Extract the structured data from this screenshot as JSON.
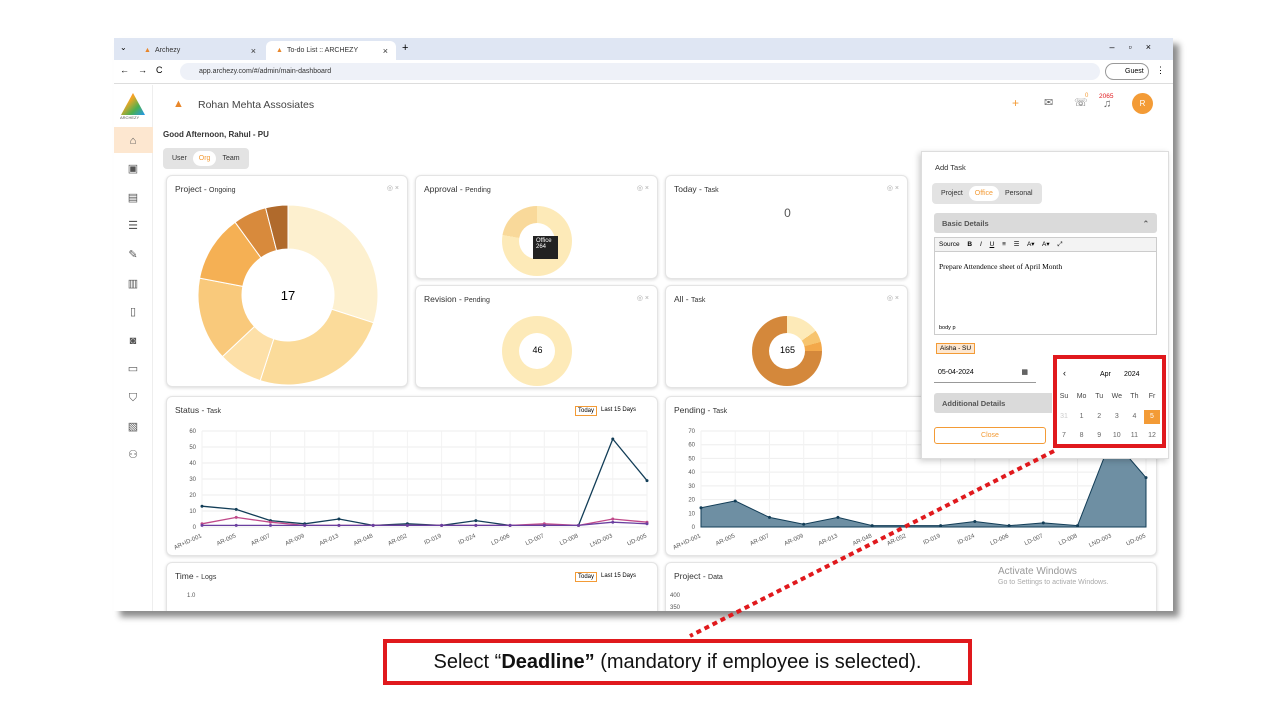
{
  "browser": {
    "tab1": "Archezy",
    "tab2": "To-do List :: ARCHEZY",
    "url": "app.archezy.com/#/admin/main-dashboard",
    "guest": "Guest"
  },
  "app": {
    "logo_text": "ARCHEZY",
    "org_name": "Rohan Mehta Assosiates",
    "notif_count": "0",
    "bell_count": "2065",
    "avatar": "R",
    "greeting": "Good Afternoon, Rahul - PU",
    "scope": [
      "User",
      "Org",
      "Team"
    ]
  },
  "cards": {
    "project": {
      "title": "Project - ",
      "sub": "Ongoing",
      "value": "17"
    },
    "approval": {
      "title": "Approval - ",
      "sub": "Pending",
      "tooltip_label": "Office",
      "tooltip_value": "264"
    },
    "today": {
      "title": "Today - ",
      "sub": "Task",
      "value": "0"
    },
    "revision": {
      "title": "Revision - ",
      "sub": "Pending",
      "value": "46"
    },
    "all": {
      "title": "All - ",
      "sub": "Task",
      "value": "165"
    },
    "status": {
      "title": "Status - ",
      "sub": "Task",
      "btn1": "Today",
      "btn2": "Last 15 Days"
    },
    "pending": {
      "title": "Pending - ",
      "sub": "Task"
    },
    "time": {
      "title": "Time - ",
      "sub": "Logs",
      "btn1": "Today",
      "btn2": "Last 15 Days"
    },
    "projdata": {
      "title": "Project - ",
      "sub": "Data"
    }
  },
  "panel": {
    "title": "Add Task",
    "tabs": [
      "Project",
      "Office",
      "Personal"
    ],
    "basic": "Basic Details",
    "toolbar_source": "Source",
    "editor_text": "Prepare Attendence sheet of April Month",
    "editor_path": "body  p",
    "assignee": "Aisha - SU",
    "date": "05-04-2024",
    "additional": "Additional Details",
    "close": "Close"
  },
  "calendar": {
    "month": "Apr",
    "year": "2024",
    "days": [
      "Su",
      "Mo",
      "Tu",
      "We",
      "Th",
      "Fr"
    ],
    "row1": [
      "31",
      "1",
      "2",
      "3",
      "4",
      "5"
    ],
    "row2": [
      "7",
      "8",
      "9",
      "10",
      "11",
      "12"
    ],
    "selected": "5"
  },
  "watermark": {
    "line1": "Activate Windows",
    "line2": "Go to Settings to activate Windows."
  },
  "caption": {
    "pre": "Select “",
    "bold": "Deadline”",
    "post": " (mandatory if employee is selected)."
  },
  "chart_data": [
    {
      "type": "line",
      "title": "Status - Task",
      "categories": [
        "AR+ID-001",
        "AR-005",
        "AR-007",
        "AR-009",
        "AR-013",
        "AR-048",
        "AR-052",
        "ID-019",
        "ID-024",
        "LD-006",
        "LD-007",
        "LD-008",
        "LND-003",
        "UD-005"
      ],
      "ylim": [
        0,
        60
      ],
      "series": [
        {
          "values": [
            13,
            11,
            4,
            2,
            5,
            1,
            2,
            1,
            4,
            1,
            1,
            1,
            55,
            29
          ]
        },
        {
          "values": [
            2,
            6,
            3,
            1,
            1,
            1,
            1,
            1,
            1,
            1,
            2,
            1,
            5,
            3
          ]
        },
        {
          "values": [
            1,
            1,
            1,
            1,
            1,
            1,
            1,
            1,
            1,
            1,
            1,
            1,
            3,
            2
          ]
        }
      ]
    },
    {
      "type": "area",
      "title": "Pending - Task",
      "categories": [
        "AR+ID-001",
        "AR-005",
        "AR-007",
        "AR-009",
        "AR-013",
        "AR-048",
        "AR-052",
        "ID-019",
        "ID-024",
        "LD-006",
        "LD-007",
        "LD-008",
        "LND-003",
        "UD-005"
      ],
      "ylim": [
        0,
        70
      ],
      "series": [
        {
          "values": [
            14,
            19,
            7,
            2,
            7,
            1,
            1,
            1,
            4,
            1,
            3,
            1,
            65,
            36
          ]
        }
      ]
    },
    {
      "type": "pie",
      "title": "Project - Ongoing",
      "values": [
        30,
        25,
        8,
        15,
        12,
        6,
        4
      ]
    }
  ]
}
